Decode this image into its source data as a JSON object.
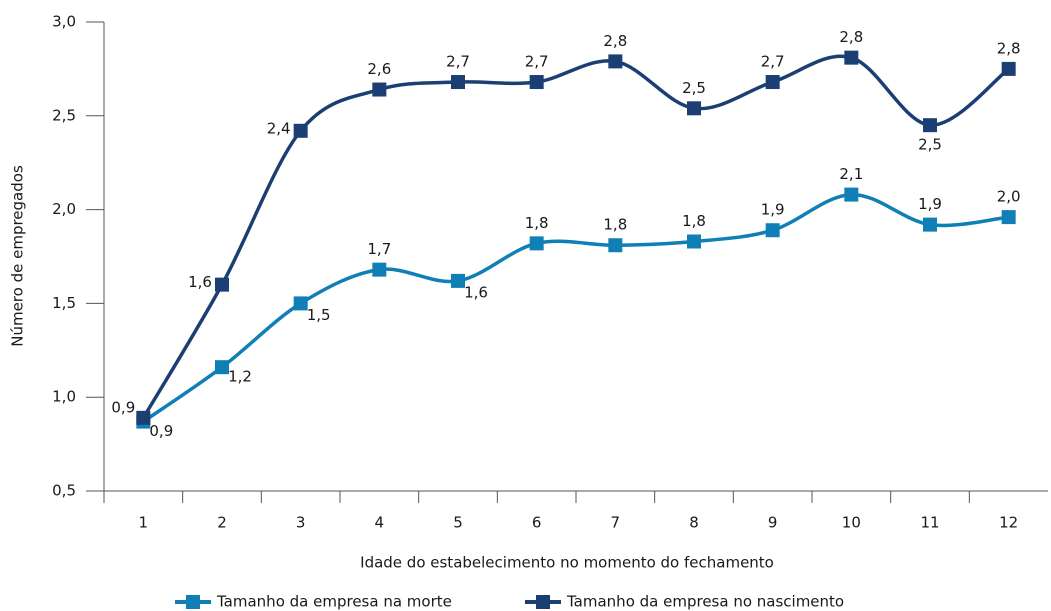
{
  "chart_data": {
    "type": "line",
    "x_label": "Idade do estabelecimento no momento do fechamento",
    "y_label": "Número de empregados",
    "categories": [
      "1",
      "2",
      "3",
      "4",
      "5",
      "6",
      "7",
      "8",
      "9",
      "10",
      "11",
      "12"
    ],
    "ylim": [
      0.5,
      3.0
    ],
    "yticks": [
      {
        "value": 0.5,
        "label": "0,5"
      },
      {
        "value": 1.0,
        "label": "1,0"
      },
      {
        "value": 1.5,
        "label": "1,5"
      },
      {
        "value": 2.0,
        "label": "2,0"
      },
      {
        "value": 2.5,
        "label": "2,5"
      },
      {
        "value": 3.0,
        "label": "3,0"
      }
    ],
    "series": [
      {
        "name": "Tamanho da empresa na morte",
        "color": "#0f7fb6",
        "values": [
          0.87,
          1.16,
          1.5,
          1.68,
          1.62,
          1.82,
          1.81,
          1.83,
          1.89,
          2.08,
          1.92,
          1.96
        ],
        "value_labels": [
          "0,9",
          "1,2",
          "1,5",
          "1,7",
          "1,6",
          "1,8",
          "1,8",
          "1,8",
          "1,9",
          "2,1",
          "1,9",
          "2,0"
        ]
      },
      {
        "name": "Tamanho da empresa no nascimento",
        "color": "#1c3f73",
        "values": [
          0.89,
          1.6,
          2.42,
          2.64,
          2.68,
          2.68,
          2.79,
          2.54,
          2.68,
          2.81,
          2.45,
          2.75
        ],
        "value_labels": [
          "0,9",
          "1,6",
          "2,4",
          "2,6",
          "2,7",
          "2,7",
          "2,8",
          "2,5",
          "2,7",
          "2,8",
          "2,5",
          "2,8"
        ]
      }
    ]
  }
}
